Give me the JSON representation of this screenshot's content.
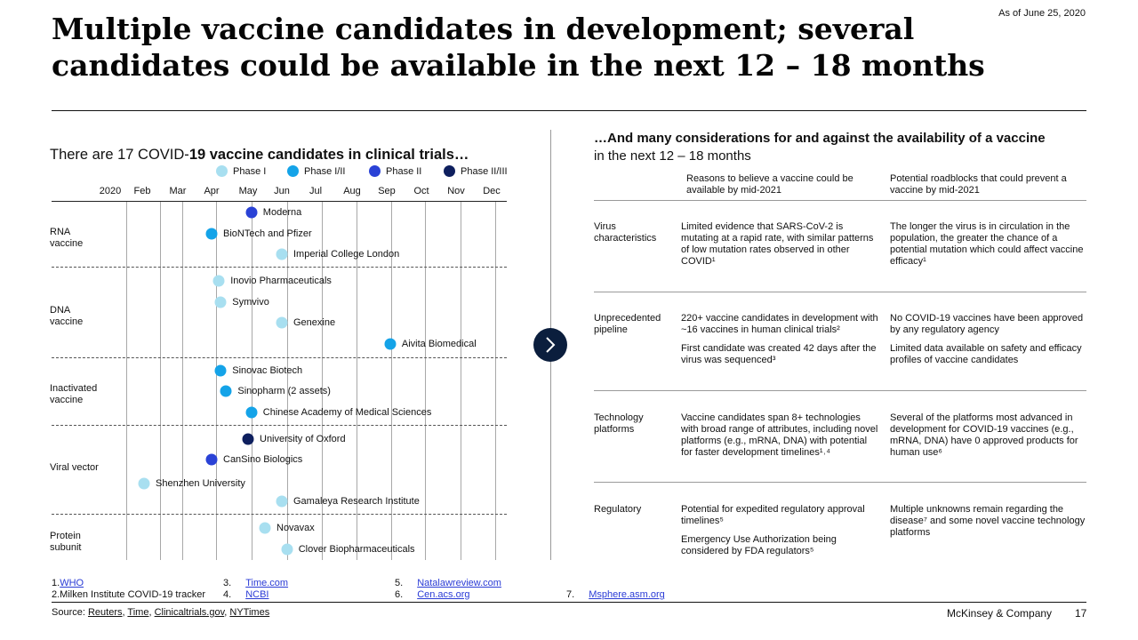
{
  "as_of": "As of June 25, 2020",
  "title": "Multiple vaccine candidates in development; several candidates could be available in the next 12 – 18 months",
  "left": {
    "heading_normal": "There are 17 COVID-",
    "heading_bold": "19 vaccine candidates in clinical trials…",
    "legend": [
      {
        "label": "Phase I",
        "color": "#a8dff0"
      },
      {
        "label": "Phase I/II",
        "color": "#14a3e8"
      },
      {
        "label": "Phase II",
        "color": "#2a42d6"
      },
      {
        "label": "Phase II/III",
        "color": "#0e1f5e"
      }
    ],
    "months": [
      "2020",
      "Feb",
      "Mar",
      "Apr",
      "May",
      "Jun",
      "Jul",
      "Aug",
      "Sep",
      "Oct",
      "Nov",
      "Dec"
    ],
    "categories": [
      {
        "label": "RNA\nvaccine"
      },
      {
        "label": "DNA\nvaccine"
      },
      {
        "label": "Inactivated\nvaccine"
      },
      {
        "label": "Viral vector"
      },
      {
        "label": "Protein\nsubunit"
      }
    ],
    "candidates": [
      {
        "name": "Moderna",
        "phase": 2,
        "month": 4.1
      },
      {
        "name": "BioNTech and Pfizer",
        "phase": 1,
        "month": 3.0
      },
      {
        "name": "Imperial College London",
        "phase": 0,
        "month": 5.0
      },
      {
        "name": "Inovio Pharmaceuticals",
        "phase": 0,
        "month": 3.2
      },
      {
        "name": "Symvivo",
        "phase": 0,
        "month": 3.25
      },
      {
        "name": "Genexine",
        "phase": 0,
        "month": 5.0
      },
      {
        "name": "Aivita Biomedical",
        "phase": 1,
        "month": 8.1
      },
      {
        "name": "Sinovac Biotech",
        "phase": 1,
        "month": 3.25
      },
      {
        "name": "Sinopharm (2 assets)",
        "phase": 1,
        "month": 3.4
      },
      {
        "name": "Chinese Academy of Medical Sciences",
        "phase": 1,
        "month": 4.1
      },
      {
        "name": "University of Oxford",
        "phase": 3,
        "month": 4.0
      },
      {
        "name": "CanSino Biologics",
        "phase": 2,
        "month": 3.0
      },
      {
        "name": "Shenzhen University",
        "phase": 0,
        "month": 1.05
      },
      {
        "name": "Gamaleya Research Institute",
        "phase": 0,
        "month": 5.0
      },
      {
        "name": "Novavax",
        "phase": 0,
        "month": 4.5
      },
      {
        "name": "Clover Biopharmaceuticals",
        "phase": 0,
        "month": 5.15
      }
    ]
  },
  "right": {
    "heading_bold": "…And many considerations for and against the availability of a vaccine",
    "heading_normal": "in the next 12 – 18 months",
    "col_for": "Reasons to believe a vaccine could be available by mid-2021",
    "col_against": "Potential roadblocks that could prevent a vaccine by mid-2021",
    "rows": [
      {
        "label": "Virus\ncharacteristics",
        "for": [
          "Limited evidence that SARS-CoV-2 is mutating at a rapid rate, with similar patterns of low mutation rates observed in other COVID¹"
        ],
        "against": [
          "The longer the virus is in circulation in the population, the greater the chance of a potential mutation which could affect vaccine efficacy¹"
        ]
      },
      {
        "label": "Unprecedented\npipeline",
        "for": [
          "220+ vaccine candidates in development with ~16 vaccines in human clinical trials²",
          "First candidate was created 42 days after the virus was sequenced³"
        ],
        "against": [
          "No COVID-19 vaccines have been approved by any regulatory agency",
          "Limited data available on safety and efficacy profiles of vaccine candidates"
        ]
      },
      {
        "label": "Technology\nplatforms",
        "for": [
          "Vaccine candidates span 8+ technologies with broad range of attributes, including novel platforms (e.g., mRNA, DNA) with potential for faster development timelines¹˒⁴"
        ],
        "against": [
          "Several of the platforms most advanced in development for COVID-19 vaccines (e.g., mRNA, DNA) have 0 approved products for human use⁶"
        ]
      },
      {
        "label": "Regulatory",
        "for": [
          "Potential for expedited regulatory approval timelines⁵",
          "Emergency Use Authorization being considered by FDA regulators⁵"
        ],
        "against": [
          "Multiple unknowns remain regarding the disease⁷ and some novel vaccine technology platforms"
        ]
      }
    ]
  },
  "footnotes": {
    "fn1_num": "1.",
    "fn1_link": "WHO",
    "fn2_text": "2.Milken Institute COVID-19 tracker",
    "fn3_num": "3.",
    "fn3_link": "Time.com",
    "fn4_num": "4.",
    "fn4_link": "NCBI",
    "fn5_num": "5.",
    "fn5_link": "Natalawreview.com",
    "fn6_num": "6.",
    "fn6_link": "Cen.acs.org",
    "fn7_num": "7.",
    "fn7_link": "Msphere.asm.org"
  },
  "source": {
    "prefix": "Source: ",
    "links": [
      "Reuters",
      "Time",
      "Clinicaltrials.gov",
      "NYTimes"
    ]
  },
  "brand": "McKinsey & Company",
  "page_number": "17"
}
